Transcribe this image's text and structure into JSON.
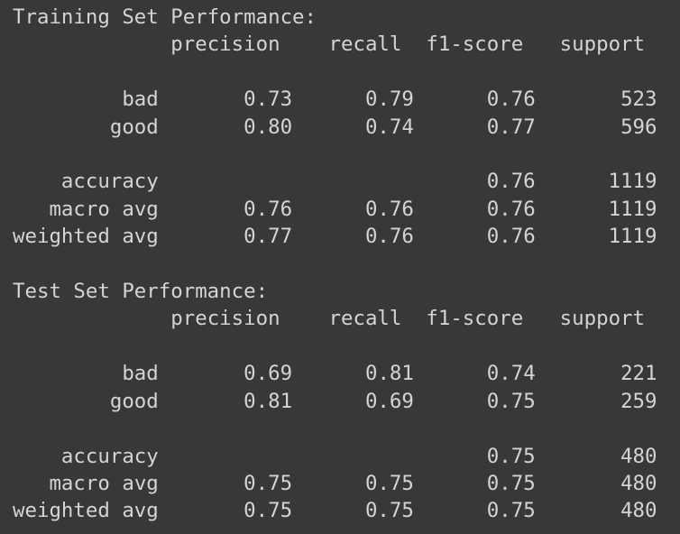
{
  "output": {
    "sections": [
      {
        "title": "Training Set Performance:",
        "header": [
          "precision",
          "recall",
          "f1-score",
          "support"
        ],
        "class_rows": [
          {
            "label": "bad",
            "precision": "0.73",
            "recall": "0.79",
            "f1": "0.76",
            "support": "523"
          },
          {
            "label": "good",
            "precision": "0.80",
            "recall": "0.74",
            "f1": "0.77",
            "support": "596"
          }
        ],
        "accuracy": {
          "label": "accuracy",
          "f1": "0.76",
          "support": "1119"
        },
        "avg_rows": [
          {
            "label": "macro avg",
            "precision": "0.76",
            "recall": "0.76",
            "f1": "0.76",
            "support": "1119"
          },
          {
            "label": "weighted avg",
            "precision": "0.77",
            "recall": "0.76",
            "f1": "0.76",
            "support": "1119"
          }
        ]
      },
      {
        "title": "Test Set Performance:",
        "header": [
          "precision",
          "recall",
          "f1-score",
          "support"
        ],
        "class_rows": [
          {
            "label": "bad",
            "precision": "0.69",
            "recall": "0.81",
            "f1": "0.74",
            "support": "221"
          },
          {
            "label": "good",
            "precision": "0.81",
            "recall": "0.69",
            "f1": "0.75",
            "support": "259"
          }
        ],
        "accuracy": {
          "label": "accuracy",
          "f1": "0.75",
          "support": "480"
        },
        "avg_rows": [
          {
            "label": "macro avg",
            "precision": "0.75",
            "recall": "0.75",
            "f1": "0.75",
            "support": "480"
          },
          {
            "label": "weighted avg",
            "precision": "0.75",
            "recall": "0.75",
            "f1": "0.75",
            "support": "480"
          }
        ]
      }
    ]
  },
  "colors": {
    "background": "#383838",
    "text": "#d4d4d4"
  }
}
